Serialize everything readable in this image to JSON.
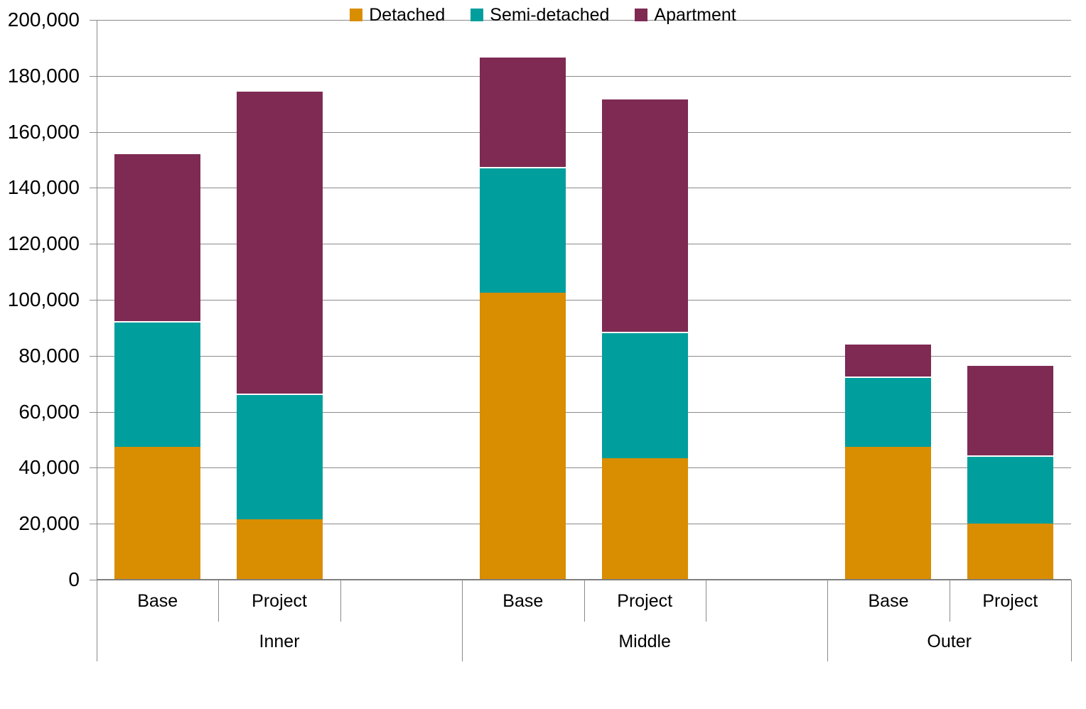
{
  "chart_data": {
    "type": "bar",
    "stacked": true,
    "title": "",
    "xlabel": "",
    "ylabel": "",
    "group_labels": [
      "Inner",
      "Middle",
      "Outer"
    ],
    "categories": [
      "Base",
      "Project",
      "Base",
      "Project",
      "Base",
      "Project"
    ],
    "series": [
      {
        "name": "Detached",
        "color": "#d98d00",
        "values": [
          47500,
          21500,
          102500,
          43500,
          47500,
          20000
        ]
      },
      {
        "name": "Semi-detached",
        "color": "#009e9d",
        "values": [
          45000,
          45000,
          45000,
          45000,
          25000,
          24500
        ]
      },
      {
        "name": "Apartment",
        "color": "#7e2a53",
        "values": [
          60000,
          108500,
          39500,
          83500,
          12000,
          32500
        ]
      }
    ],
    "stack_totals": [
      152500,
      175000,
      187000,
      172000,
      84500,
      77000
    ],
    "ylim": [
      0,
      200000
    ],
    "ytick_interval": 20000,
    "ytick_labels": [
      "0",
      "20,000",
      "40,000",
      "60,000",
      "80,000",
      "100,000",
      "120,000",
      "140,000",
      "160,000",
      "180,000",
      "200,000"
    ],
    "grid": true,
    "legend_position": "bottom"
  },
  "style_colors": {
    "gridline": "#8a8a8a",
    "axis_line": "#7f7f7f",
    "text": "#000000",
    "background": "#ffffff"
  }
}
